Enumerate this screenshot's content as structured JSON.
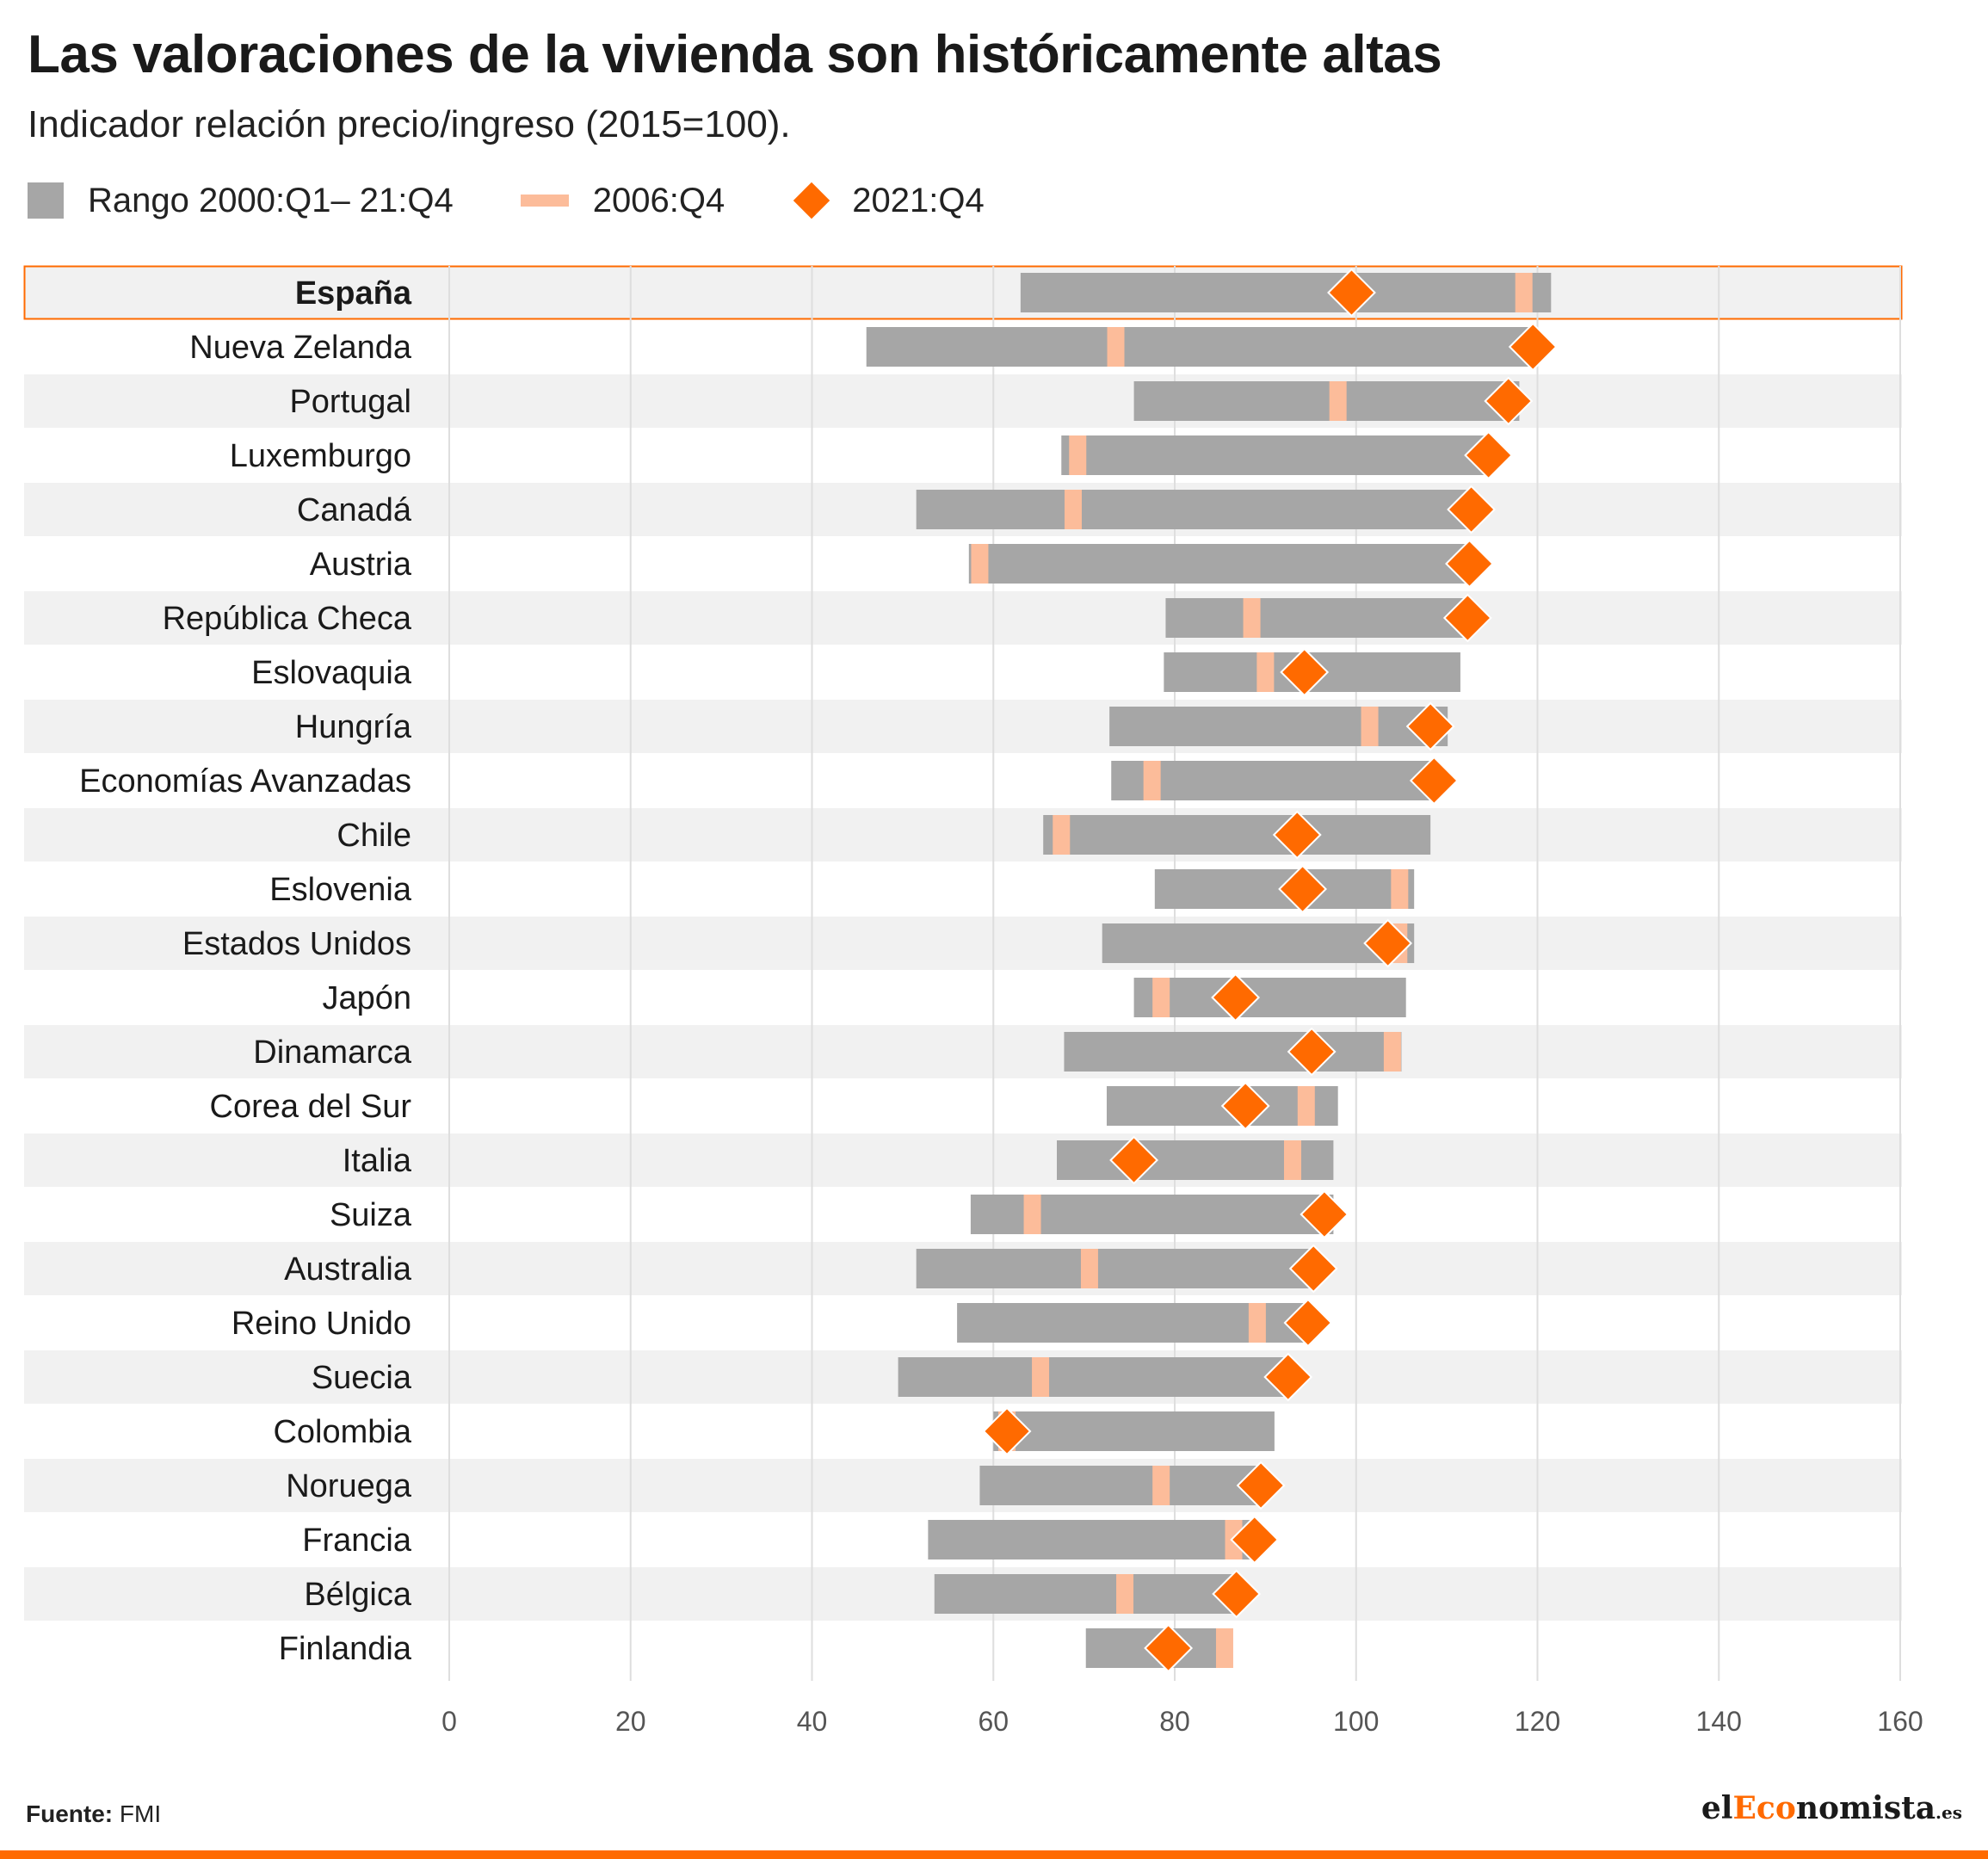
{
  "header": {
    "title": "Las valoraciones de la vivienda son históricamente altas",
    "subtitle": "Indicador relación precio/ingreso (2015=100)."
  },
  "legend": {
    "range_label": "Rango 2000:Q1– 21:Q4",
    "q2006_label": "2006:Q4",
    "q2021_label": "2021:Q4"
  },
  "footer": {
    "source_label": "Fuente:",
    "source_value": "FMI",
    "logo_el": "el",
    "logo_eco": "Eco",
    "logo_nomista": "nomista",
    "logo_es": ".es"
  },
  "colors": {
    "range": "#a6a6a6",
    "q2006": "#fcbc9a",
    "q2021": "#ff6a00",
    "stripe": "#f1f1f1",
    "highlight_border": "#ff6a00",
    "grid": "#dedede"
  },
  "chart_data": {
    "type": "range-dot",
    "xlim": [
      0,
      160
    ],
    "xticks": [
      "0",
      "20",
      "40",
      "60",
      "80",
      "100",
      "120",
      "140",
      "160"
    ],
    "highlight": "España",
    "series": [
      {
        "name": "Rango 2000:Q1– 21:Q4",
        "role": "range"
      },
      {
        "name": "2006:Q4",
        "role": "marker"
      },
      {
        "name": "2021:Q4",
        "role": "marker"
      }
    ],
    "rows": [
      {
        "country": "España",
        "min": 63,
        "max": 121.5,
        "q2006": 118.5,
        "q2021": 99.5
      },
      {
        "country": "Nueva Zelanda",
        "min": 46,
        "max": 120,
        "q2006": 73.5,
        "q2021": 119.5
      },
      {
        "country": "Portugal",
        "min": 75.5,
        "max": 118,
        "q2006": 98,
        "q2021": 116.8
      },
      {
        "country": "Luxemburgo",
        "min": 67.5,
        "max": 115,
        "q2006": 69.3,
        "q2021": 114.6
      },
      {
        "country": "Canadá",
        "min": 51.5,
        "max": 113,
        "q2006": 68.8,
        "q2021": 112.7
      },
      {
        "country": "Austria",
        "min": 57.3,
        "max": 112.5,
        "q2006": 58.5,
        "q2021": 112.5
      },
      {
        "country": "República Checa",
        "min": 79,
        "max": 112.3,
        "q2006": 88.5,
        "q2021": 112.3
      },
      {
        "country": "Eslovaquia",
        "min": 78.8,
        "max": 111.5,
        "q2006": 90,
        "q2021": 94.3
      },
      {
        "country": "Hungría",
        "min": 72.8,
        "max": 110.1,
        "q2006": 101.5,
        "q2021": 108.2
      },
      {
        "country": "Economías Avanzadas",
        "min": 73,
        "max": 109,
        "q2006": 77.5,
        "q2021": 108.6
      },
      {
        "country": "Chile",
        "min": 65.5,
        "max": 108.2,
        "q2006": 67.5,
        "q2021": 93.5
      },
      {
        "country": "Eslovenia",
        "min": 77.8,
        "max": 106.4,
        "q2006": 104.8,
        "q2021": 94.1
      },
      {
        "country": "Estados Unidos",
        "min": 72,
        "max": 106.4,
        "q2006": 104.7,
        "q2021": 103.5
      },
      {
        "country": "Japón",
        "min": 75.5,
        "max": 105.5,
        "q2006": 78.5,
        "q2021": 86.7
      },
      {
        "country": "Dinamarca",
        "min": 67.8,
        "max": 105,
        "q2006": 104,
        "q2021": 95.1
      },
      {
        "country": "Corea del Sur",
        "min": 72.5,
        "max": 98,
        "q2006": 94.5,
        "q2021": 87.8
      },
      {
        "country": "Italia",
        "min": 67,
        "max": 97.5,
        "q2006": 93,
        "q2021": 75.5
      },
      {
        "country": "Suiza",
        "min": 57.5,
        "max": 97.5,
        "q2006": 64.3,
        "q2021": 96.5
      },
      {
        "country": "Australia",
        "min": 51.5,
        "max": 95.3,
        "q2006": 70.6,
        "q2021": 95.3
      },
      {
        "country": "Reino Unido",
        "min": 56,
        "max": 94.7,
        "q2006": 89.1,
        "q2021": 94.7
      },
      {
        "country": "Suecia",
        "min": 49.5,
        "max": 92.5,
        "q2006": 65.2,
        "q2021": 92.5
      },
      {
        "country": "Colombia",
        "min": 60,
        "max": 91,
        "q2006": 61.5,
        "q2021": 61.5
      },
      {
        "country": "Noruega",
        "min": 58.5,
        "max": 90,
        "q2006": 78.5,
        "q2021": 89.5
      },
      {
        "country": "Francia",
        "min": 52.8,
        "max": 88.8,
        "q2006": 86.5,
        "q2021": 88.8
      },
      {
        "country": "Bélgica",
        "min": 53.5,
        "max": 86.8,
        "q2006": 74.5,
        "q2021": 86.8
      },
      {
        "country": "Finlandia",
        "min": 70.2,
        "max": 85.5,
        "q2006": 85.5,
        "q2021": 79.3
      }
    ]
  }
}
